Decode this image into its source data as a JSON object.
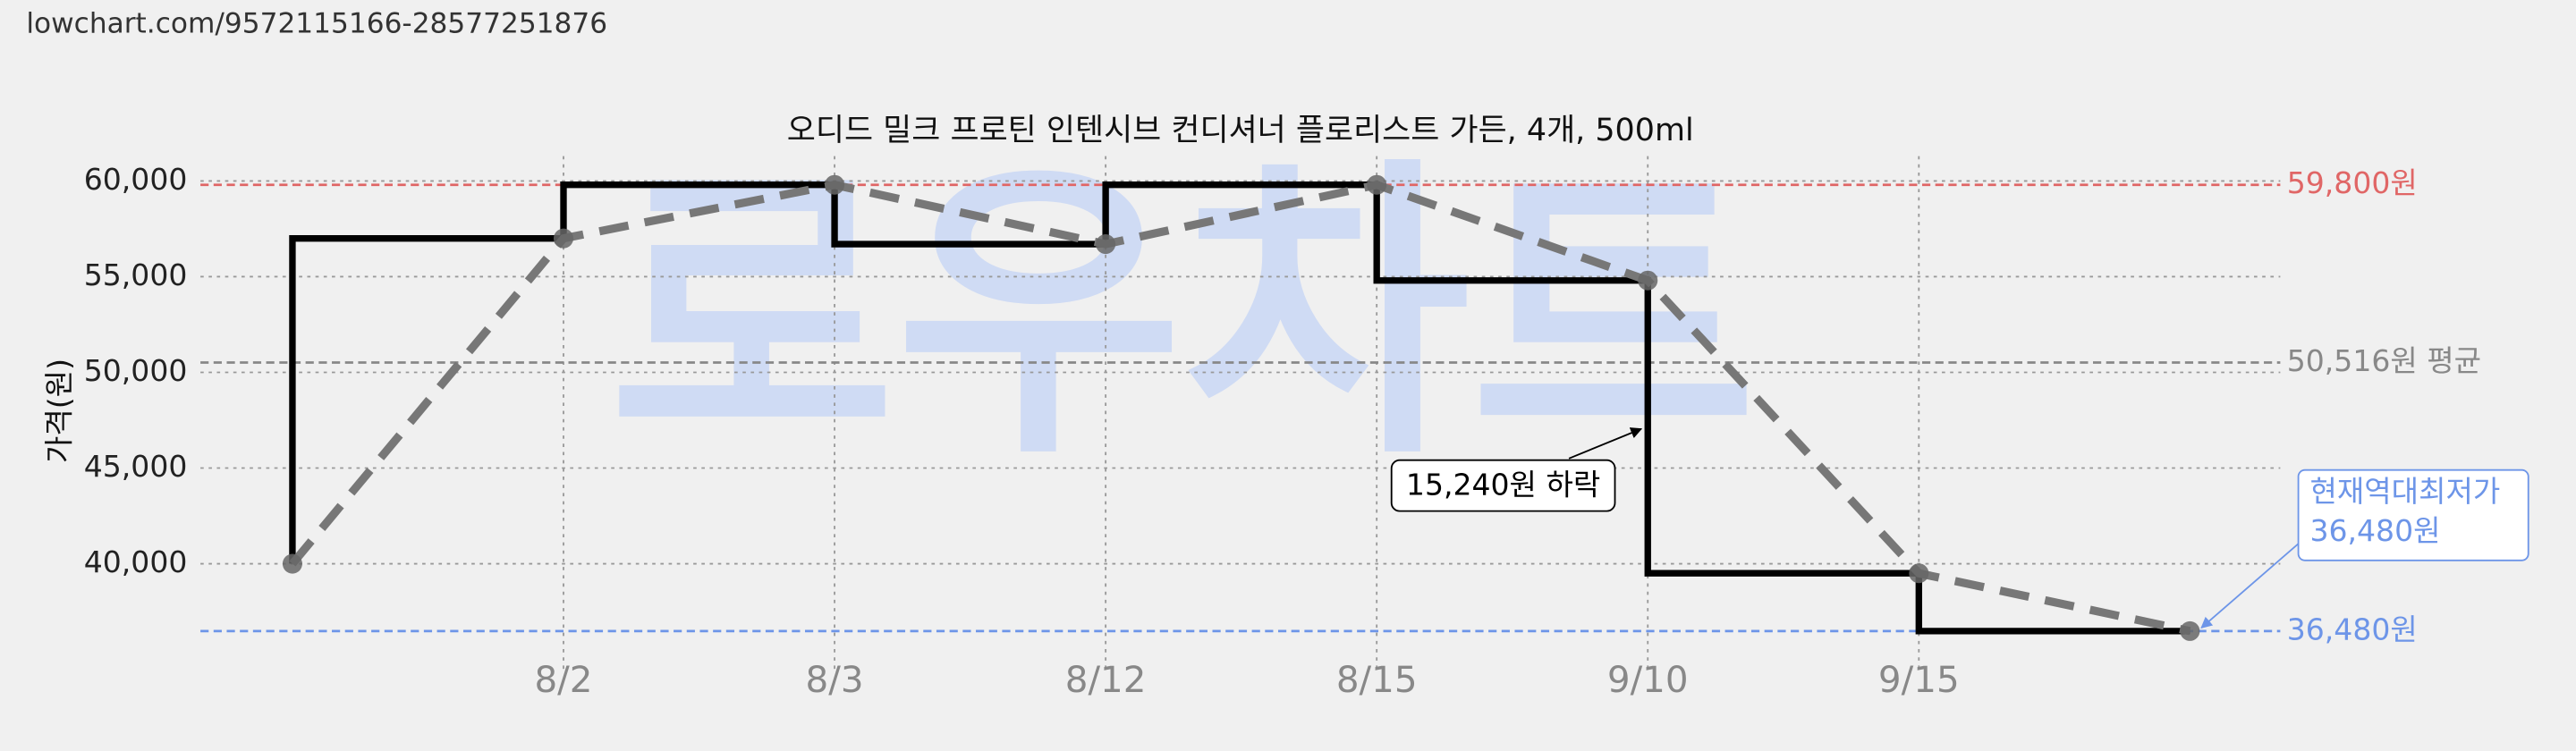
{
  "url": "lowchart.com/9572115166-28577251876",
  "chart_data": {
    "type": "step",
    "title": "오디드 밀크 프로틴 인텐시브 컨디셔너 플로리스트 가든, 4개, 500ml",
    "watermark": "로우차트",
    "y_label": "가격(원)",
    "categories": [
      null,
      "8/2",
      "8/3",
      "8/12",
      "8/15",
      "9/10",
      "9/15",
      null
    ],
    "values": [
      40000,
      57000,
      59800,
      56700,
      59800,
      54800,
      39500,
      36480
    ],
    "step_color": "#000000",
    "line_color": "#777777",
    "ylim": [
      34250,
      61300
    ],
    "yticks": [
      {
        "value": 40000,
        "label": "40,000"
      },
      {
        "value": 45000,
        "label": "45,000"
      },
      {
        "value": 50000,
        "label": "50,000"
      },
      {
        "value": 55000,
        "label": "55,000"
      },
      {
        "value": 60000,
        "label": "60,000"
      }
    ],
    "grid": true,
    "reference_lines": [
      {
        "value": 59800,
        "label": "59,800원",
        "color": "#e06666"
      },
      {
        "value": 50516,
        "label": "50,516원 평균",
        "color": "#888888"
      },
      {
        "value": 36480,
        "label": "36,480원",
        "color": "#6d95e8"
      }
    ],
    "annotations": [
      {
        "text": "15,240원 하락"
      },
      {
        "text": "현재역대최저가",
        "text2": "36,480원"
      }
    ]
  }
}
